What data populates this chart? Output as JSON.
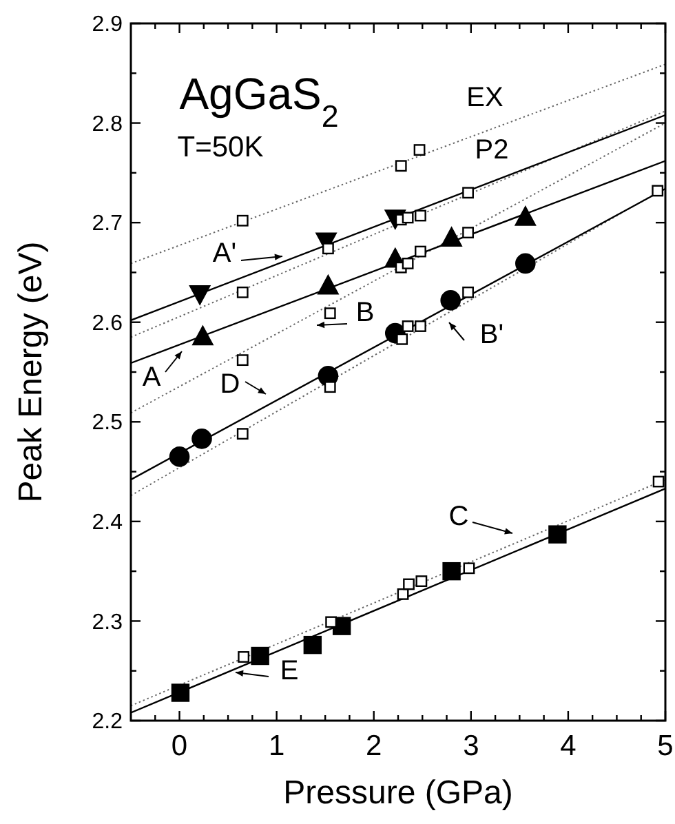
{
  "chart_data": {
    "type": "scatter",
    "xlabel": "Pressure (GPa)",
    "ylabel": "Peak Energy (eV)",
    "xlim": [
      -0.5,
      5
    ],
    "ylim": [
      2.2,
      2.9
    ],
    "xticks": [
      {
        "value": -0.25,
        "label": null
      },
      0,
      {
        "value": 0.25,
        "label": null
      },
      {
        "value": 0.5,
        "label": null
      },
      {
        "value": 0.75,
        "label": null
      },
      1,
      {
        "value": 1.25,
        "label": null
      },
      {
        "value": 1.5,
        "label": null
      },
      {
        "value": 1.75,
        "label": null
      },
      2,
      {
        "value": 2.25,
        "label": null
      },
      {
        "value": 2.5,
        "label": null
      },
      {
        "value": 2.75,
        "label": null
      },
      3,
      {
        "value": 3.25,
        "label": null
      },
      {
        "value": 3.5,
        "label": null
      },
      {
        "value": 3.75,
        "label": null
      },
      4,
      {
        "value": 4.25,
        "label": null
      },
      {
        "value": 4.5,
        "label": null
      },
      {
        "value": 4.75,
        "label": null
      },
      5
    ],
    "yticks": [
      2.2,
      {
        "value": 2.25,
        "label": null
      },
      2.3,
      {
        "value": 2.35,
        "label": null
      },
      2.4,
      {
        "value": 2.45,
        "label": null
      },
      2.5,
      {
        "value": 2.55,
        "label": null
      },
      2.6,
      {
        "value": 2.65,
        "label": null
      },
      2.7,
      {
        "value": 2.75,
        "label": null
      },
      2.8,
      {
        "value": 2.85,
        "label": null
      },
      2.9
    ],
    "grid": false,
    "series": [
      {
        "type": "line",
        "color": "#666666",
        "line_style": "dotted",
        "marker": "none",
        "x": [
          -0.5,
          5
        ],
        "values": [
          2.659,
          2.859
        ]
      },
      {
        "type": "line",
        "color": "#666666",
        "line_style": "dotted",
        "marker": "none",
        "x": [
          -0.5,
          5
        ],
        "values": [
          2.585,
          2.812
        ]
      },
      {
        "type": "line",
        "color": "#666666",
        "line_style": "dotted",
        "marker": "none",
        "x": [
          -0.5,
          5
        ],
        "values": [
          2.509,
          2.8
        ]
      },
      {
        "type": "line",
        "color": "#666666",
        "line_style": "dotted",
        "marker": "none",
        "x": [
          -0.5,
          5
        ],
        "values": [
          2.426,
          2.735
        ]
      },
      {
        "type": "line",
        "color": "#666666",
        "line_style": "dotted",
        "marker": "none",
        "x": [
          -0.5,
          5
        ],
        "values": [
          2.215,
          2.442
        ]
      },
      {
        "type": "line",
        "color": "#000000",
        "line_style": "solid",
        "marker": "none",
        "x": [
          -0.5,
          5
        ],
        "values": [
          2.602,
          2.808
        ]
      },
      {
        "type": "line",
        "color": "#000000",
        "line_style": "solid",
        "marker": "none",
        "x": [
          -0.5,
          5
        ],
        "values": [
          2.559,
          2.762
        ]
      },
      {
        "type": "line",
        "color": "#000000",
        "line_style": "solid",
        "marker": "none",
        "x": [
          -0.5,
          5
        ],
        "values": [
          2.442,
          2.734
        ]
      },
      {
        "type": "line",
        "color": "#000000",
        "line_style": "solid",
        "marker": "none",
        "x": [
          -0.5,
          5
        ],
        "values": [
          2.208,
          2.433
        ]
      },
      {
        "color": "#ffffff",
        "marker": "square",
        "x": [
          0.65,
          2.28,
          2.47,
          0.65,
          1.53,
          2.28,
          2.35,
          2.48,
          2.97,
          4.92,
          2.28,
          2.35,
          2.48,
          2.97,
          1.55,
          0.65,
          0.65,
          1.55,
          2.29,
          2.35,
          2.48,
          2.97,
          0.66,
          1.56,
          2.3,
          2.36,
          2.49,
          2.98,
          4.93
        ],
        "values": [
          2.702,
          2.757,
          2.773,
          2.63,
          2.674,
          2.703,
          2.705,
          2.707,
          2.73,
          2.732,
          2.655,
          2.659,
          2.671,
          2.69,
          2.609,
          2.562,
          2.488,
          2.535,
          2.583,
          2.596,
          2.596,
          2.63,
          2.264,
          2.299,
          2.327,
          2.337,
          2.34,
          2.353,
          2.44
        ]
      },
      {
        "color": "#000000",
        "marker": "triangle-down",
        "x": [
          0.21,
          1.51,
          2.22
        ],
        "values": [
          2.628,
          2.681,
          2.704
        ]
      },
      {
        "color": "#000000",
        "marker": "triangle",
        "x": [
          0.24,
          1.53,
          2.22,
          2.8,
          3.56
        ],
        "values": [
          2.586,
          2.637,
          2.664,
          2.685,
          2.706
        ]
      },
      {
        "color": "#000000",
        "marker": "circle",
        "x": [
          0,
          0.23,
          1.53,
          2.22,
          2.79,
          3.56
        ],
        "values": [
          2.465,
          2.483,
          2.546,
          2.589,
          2.622,
          2.659
        ]
      },
      {
        "color": "#000000",
        "marker": "square",
        "x": [
          0.01,
          0.83,
          1.37,
          1.67,
          2.8,
          3.89
        ],
        "values": [
          2.228,
          2.265,
          2.276,
          2.295,
          2.35,
          2.387
        ]
      }
    ],
    "annotations": [
      "AgGaS$_{2}$",
      "T=50K",
      "EX",
      "P2",
      "A'",
      "A",
      "B",
      "B'",
      "D",
      "C",
      "E"
    ]
  }
}
